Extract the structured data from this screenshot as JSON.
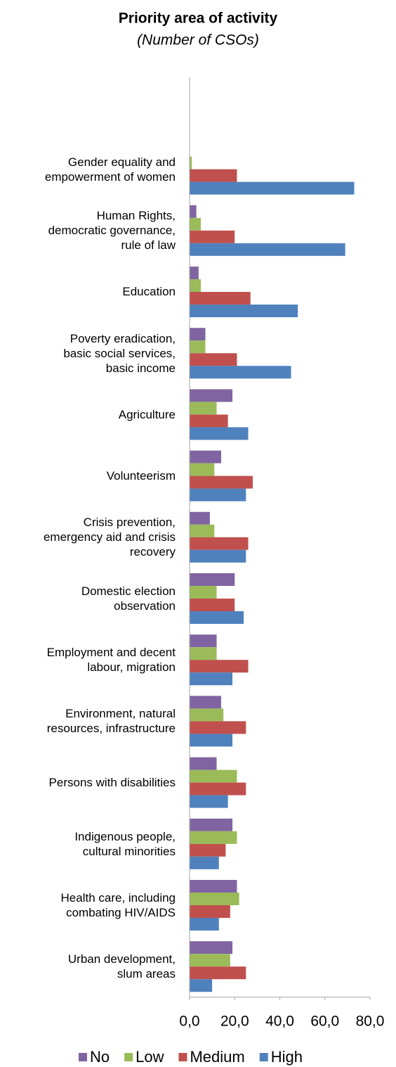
{
  "chart_data": {
    "type": "bar",
    "orientation": "horizontal",
    "title": "Priority  area of activity",
    "subtitle": "(Number of CSOs)",
    "categories": [
      "Gender equality and\nempowerment of women",
      "Human Rights,\ndemocratic governance,\nrule of law",
      "Education",
      "Poverty eradication,\nbasic social services,\nbasic income",
      "Agriculture",
      "Volunteerism",
      "Crisis prevention,\nemergency aid and crisis\nrecovery",
      "Domestic election\nobservation",
      "Employment and decent\nlabour, migration",
      "Environment, natural\nresources, infrastructure",
      "Persons with disabilities",
      "Indigenous people,\ncultural minorities",
      "Health care, including\ncombating HIV/AIDS",
      "Urban development,\nslum areas"
    ],
    "series": [
      {
        "name": "No",
        "color": "#8064a2",
        "values": [
          0,
          3,
          4,
          7,
          19,
          14,
          9,
          20,
          12,
          14,
          12,
          19,
          21,
          19
        ]
      },
      {
        "name": "Low",
        "color": "#9bbb59",
        "values": [
          1,
          5,
          5,
          7,
          12,
          11,
          11,
          12,
          12,
          15,
          21,
          21,
          22,
          18
        ]
      },
      {
        "name": "Medium",
        "color": "#c0504d",
        "values": [
          21,
          20,
          27,
          21,
          17,
          28,
          26,
          20,
          26,
          25,
          25,
          16,
          18,
          25
        ]
      },
      {
        "name": "High",
        "color": "#4f81bd",
        "values": [
          73,
          69,
          48,
          45,
          26,
          25,
          25,
          24,
          19,
          19,
          17,
          13,
          13,
          10
        ]
      }
    ],
    "xlim": [
      0,
      80
    ],
    "xticks": [
      {
        "value": 0,
        "label": "0,0"
      },
      {
        "value": 20,
        "label": "20,0"
      },
      {
        "value": 40,
        "label": "40,0"
      },
      {
        "value": 60,
        "label": "60,0"
      },
      {
        "value": 80,
        "label": "80,0"
      }
    ],
    "grid": false,
    "legend": "bottom"
  }
}
